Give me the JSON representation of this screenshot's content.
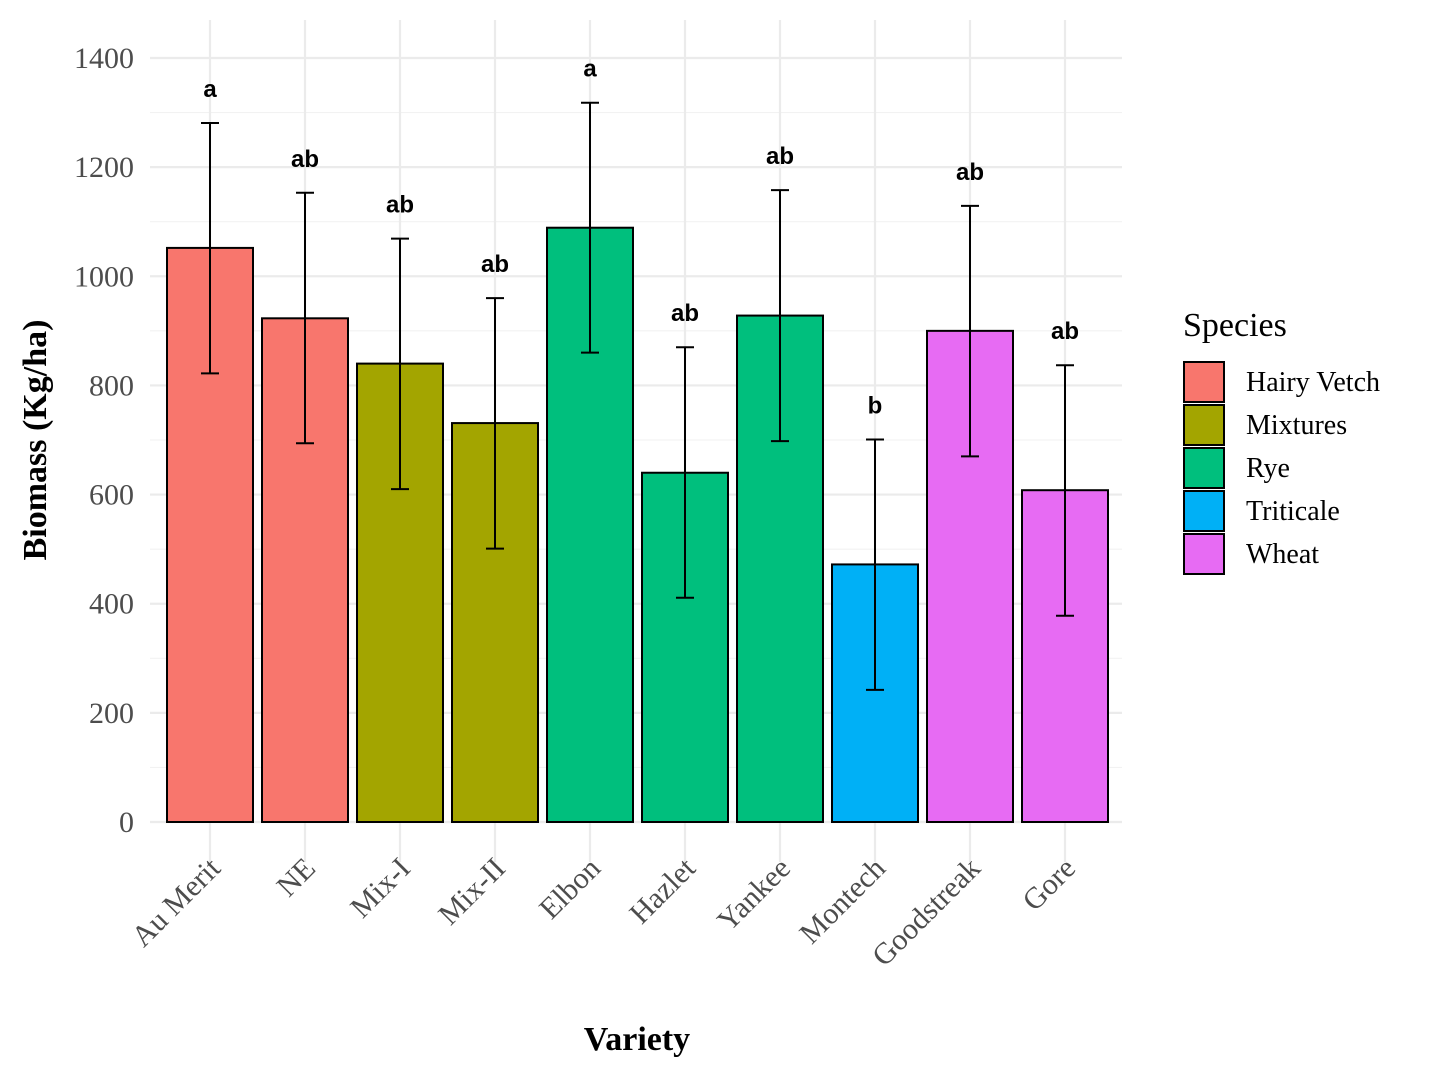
{
  "chart_data": {
    "type": "bar",
    "title": "",
    "xlabel": "Variety",
    "ylabel": "Biomass (Kg/ha)",
    "ylim": [
      0,
      1400
    ],
    "yticks": [
      0,
      200,
      400,
      600,
      800,
      1000,
      1200,
      1400
    ],
    "grid": true,
    "legend": {
      "title": "Species",
      "position": "right",
      "entries": [
        "Hairy Vetch",
        "Mixtures",
        "Rye",
        "Triticale",
        "Wheat"
      ]
    },
    "colors": {
      "Hairy Vetch": "#F8766D",
      "Mixtures": "#A3A500",
      "Rye": "#00BF7D",
      "Triticale": "#00B0F6",
      "Wheat": "#E76BF3"
    },
    "categories": [
      "Au Merit",
      "NE",
      "Mix-I",
      "Mix-II",
      "Elbon",
      "Hazlet",
      "Yankee",
      "Montech",
      "Goodstreak",
      "Gore"
    ],
    "species": [
      "Hairy Vetch",
      "Hairy Vetch",
      "Mixtures",
      "Mixtures",
      "Rye",
      "Rye",
      "Rye",
      "Triticale",
      "Wheat",
      "Wheat"
    ],
    "values": [
      1052,
      923,
      840,
      731,
      1089,
      640,
      928,
      472,
      900,
      608
    ],
    "error_low": [
      822,
      694,
      610,
      501,
      860,
      411,
      698,
      242,
      670,
      378
    ],
    "error_high": [
      1281,
      1153,
      1069,
      960,
      1318,
      870,
      1158,
      701,
      1129,
      837
    ],
    "significance_labels": [
      "a",
      "ab",
      "ab",
      "ab",
      "a",
      "ab",
      "ab",
      "b",
      "ab",
      "ab"
    ]
  }
}
